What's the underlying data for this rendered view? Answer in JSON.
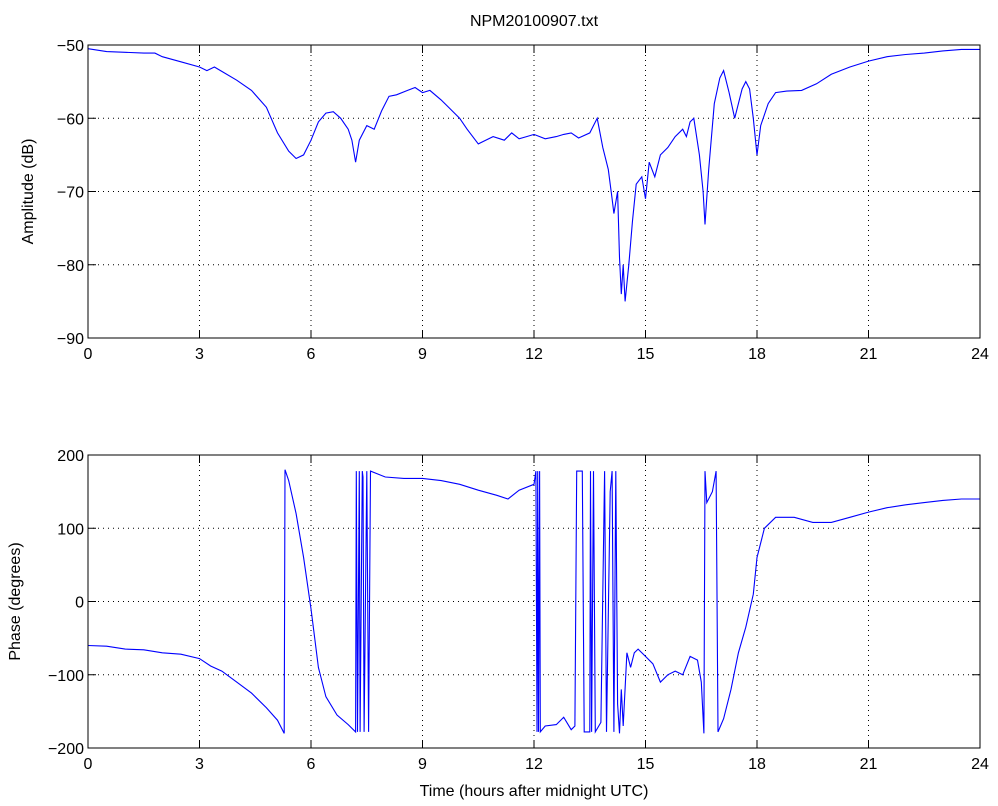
{
  "figure": {
    "title": "NPM20100907.txt",
    "xlabel": "Time (hours after midnight UTC)"
  },
  "colors": {
    "line": "#0000ff",
    "axes": "#000000",
    "grid": "#000000",
    "background": "#ffffff"
  },
  "chart_data": [
    {
      "type": "line",
      "title": "NPM20100907.txt",
      "xlabel": "",
      "ylabel": "Amplitude (dB)",
      "xlim": [
        0,
        24
      ],
      "ylim": [
        -90,
        -50
      ],
      "xticks": [
        0,
        3,
        6,
        9,
        12,
        15,
        18,
        21,
        24
      ],
      "yticks": [
        -90,
        -80,
        -70,
        -60,
        -50
      ],
      "xtick_labels": [
        "0",
        "3",
        "6",
        "9",
        "12",
        "15",
        "18",
        "21",
        "24"
      ],
      "ytick_labels": [
        "−90",
        "−80",
        "−70",
        "−60",
        "−50"
      ],
      "grid": true,
      "series": [
        {
          "points": [
            [
              0,
              -50.5
            ],
            [
              0.5,
              -50.9
            ],
            [
              1,
              -51
            ],
            [
              1.5,
              -51.1
            ],
            [
              1.8,
              -51.1
            ],
            [
              2,
              -51.6
            ],
            [
              2.5,
              -52.3
            ],
            [
              3,
              -53
            ],
            [
              3.2,
              -53.5
            ],
            [
              3.4,
              -53
            ],
            [
              3.6,
              -53.6
            ],
            [
              4,
              -54.8
            ],
            [
              4.4,
              -56.2
            ],
            [
              4.8,
              -58.5
            ],
            [
              5.1,
              -62
            ],
            [
              5.4,
              -64.5
            ],
            [
              5.6,
              -65.5
            ],
            [
              5.8,
              -65
            ],
            [
              6,
              -63
            ],
            [
              6.2,
              -60.5
            ],
            [
              6.4,
              -59.3
            ],
            [
              6.6,
              -59.1
            ],
            [
              6.8,
              -60
            ],
            [
              7,
              -61.5
            ],
            [
              7.1,
              -63
            ],
            [
              7.2,
              -66
            ],
            [
              7.3,
              -63
            ],
            [
              7.5,
              -61
            ],
            [
              7.7,
              -61.5
            ],
            [
              7.9,
              -59
            ],
            [
              8.1,
              -57
            ],
            [
              8.3,
              -56.8
            ],
            [
              8.6,
              -56.2
            ],
            [
              8.8,
              -55.8
            ],
            [
              9,
              -56.5
            ],
            [
              9.2,
              -56.2
            ],
            [
              9.5,
              -57.5
            ],
            [
              9.8,
              -59
            ],
            [
              10,
              -60
            ],
            [
              10.2,
              -61.5
            ],
            [
              10.5,
              -63.5
            ],
            [
              10.7,
              -63
            ],
            [
              10.9,
              -62.5
            ],
            [
              11.2,
              -63
            ],
            [
              11.4,
              -62
            ],
            [
              11.6,
              -62.8
            ],
            [
              11.8,
              -62.5
            ],
            [
              12,
              -62.2
            ],
            [
              12.3,
              -62.8
            ],
            [
              12.6,
              -62.5
            ],
            [
              12.8,
              -62.2
            ],
            [
              13,
              -62
            ],
            [
              13.2,
              -62.7
            ],
            [
              13.5,
              -62
            ],
            [
              13.7,
              -60
            ],
            [
              13.85,
              -64
            ],
            [
              14,
              -67
            ],
            [
              14.1,
              -71
            ],
            [
              14.15,
              -73
            ],
            [
              14.25,
              -70
            ],
            [
              14.3,
              -79
            ],
            [
              14.35,
              -84
            ],
            [
              14.4,
              -80
            ],
            [
              14.45,
              -85
            ],
            [
              14.55,
              -80
            ],
            [
              14.65,
              -74
            ],
            [
              14.75,
              -69
            ],
            [
              14.9,
              -68
            ],
            [
              15,
              -71
            ],
            [
              15.1,
              -66
            ],
            [
              15.25,
              -68
            ],
            [
              15.4,
              -65
            ],
            [
              15.6,
              -64
            ],
            [
              15.8,
              -62.5
            ],
            [
              16,
              -61.5
            ],
            [
              16.1,
              -62.5
            ],
            [
              16.2,
              -60.5
            ],
            [
              16.3,
              -60
            ],
            [
              16.45,
              -65
            ],
            [
              16.55,
              -70
            ],
            [
              16.6,
              -74.5
            ],
            [
              16.7,
              -67
            ],
            [
              16.85,
              -58
            ],
            [
              17,
              -54.5
            ],
            [
              17.1,
              -53.5
            ],
            [
              17.25,
              -56.5
            ],
            [
              17.4,
              -60
            ],
            [
              17.6,
              -56
            ],
            [
              17.7,
              -55
            ],
            [
              17.8,
              -56
            ],
            [
              17.9,
              -60
            ],
            [
              18,
              -65
            ],
            [
              18.1,
              -61
            ],
            [
              18.3,
              -58
            ],
            [
              18.5,
              -56.5
            ],
            [
              18.8,
              -56.3
            ],
            [
              19.2,
              -56.2
            ],
            [
              19.6,
              -55.3
            ],
            [
              20,
              -54
            ],
            [
              20.5,
              -53
            ],
            [
              21,
              -52.2
            ],
            [
              21.5,
              -51.6
            ],
            [
              22,
              -51.3
            ],
            [
              22.5,
              -51.1
            ],
            [
              23,
              -50.8
            ],
            [
              23.5,
              -50.6
            ],
            [
              24,
              -50.6
            ]
          ]
        }
      ]
    },
    {
      "type": "line",
      "title": "",
      "xlabel": "Time (hours after midnight UTC)",
      "ylabel": "Phase (degrees)",
      "xlim": [
        0,
        24
      ],
      "ylim": [
        -200,
        200
      ],
      "xticks": [
        0,
        3,
        6,
        9,
        12,
        15,
        18,
        21,
        24
      ],
      "yticks": [
        -200,
        -100,
        0,
        100,
        200
      ],
      "xtick_labels": [
        "0",
        "3",
        "6",
        "9",
        "12",
        "15",
        "18",
        "21",
        "24"
      ],
      "ytick_labels": [
        "−200",
        "−100",
        "0",
        "100",
        "200"
      ],
      "grid": true,
      "series": [
        {
          "points": [
            [
              0,
              -60
            ],
            [
              0.5,
              -61
            ],
            [
              1,
              -65
            ],
            [
              1.5,
              -66
            ],
            [
              2,
              -70
            ],
            [
              2.5,
              -72
            ],
            [
              3,
              -78
            ],
            [
              3.3,
              -88
            ],
            [
              3.6,
              -95
            ],
            [
              4,
              -110
            ],
            [
              4.4,
              -125
            ],
            [
              4.8,
              -145
            ],
            [
              5.1,
              -162
            ],
            [
              5.28,
              -180
            ],
            [
              5.3,
              180
            ],
            [
              5.4,
              165
            ],
            [
              5.6,
              120
            ],
            [
              5.8,
              60
            ],
            [
              6,
              -10
            ],
            [
              6.2,
              -90
            ],
            [
              6.4,
              -130
            ],
            [
              6.7,
              -155
            ],
            [
              7,
              -168
            ],
            [
              7.2,
              -178
            ],
            [
              7.22,
              178
            ],
            [
              7.25,
              -178
            ],
            [
              7.3,
              178
            ],
            [
              7.32,
              -178
            ],
            [
              7.38,
              178
            ],
            [
              7.4,
              170
            ],
            [
              7.43,
              -178
            ],
            [
              7.5,
              178
            ],
            [
              7.55,
              -178
            ],
            [
              7.6,
              178
            ],
            [
              8,
              170
            ],
            [
              8.5,
              168
            ],
            [
              9,
              168
            ],
            [
              9.5,
              165
            ],
            [
              10,
              160
            ],
            [
              10.5,
              152
            ],
            [
              11,
              145
            ],
            [
              11.3,
              140
            ],
            [
              11.6,
              152
            ],
            [
              12,
              160
            ],
            [
              12.05,
              178
            ],
            [
              12.08,
              -178
            ],
            [
              12.1,
              178
            ],
            [
              12.12,
              -178
            ],
            [
              12.15,
              178
            ],
            [
              12.17,
              -178
            ],
            [
              12.3,
              -170
            ],
            [
              12.6,
              -168
            ],
            [
              12.8,
              -158
            ],
            [
              13,
              -175
            ],
            [
              13.1,
              -170
            ],
            [
              13.15,
              178
            ],
            [
              13.3,
              178
            ],
            [
              13.35,
              -178
            ],
            [
              13.5,
              -178
            ],
            [
              13.52,
              178
            ],
            [
              13.55,
              -178
            ],
            [
              13.6,
              178
            ],
            [
              13.65,
              -178
            ],
            [
              13.8,
              -165
            ],
            [
              13.9,
              178
            ],
            [
              13.95,
              -178
            ],
            [
              14.05,
              150
            ],
            [
              14.1,
              178
            ],
            [
              14.15,
              -178
            ],
            [
              14.2,
              178
            ],
            [
              14.25,
              -140
            ],
            [
              14.3,
              -180
            ],
            [
              14.35,
              -120
            ],
            [
              14.4,
              -170
            ],
            [
              14.5,
              -70
            ],
            [
              14.6,
              -90
            ],
            [
              14.7,
              -70
            ],
            [
              14.8,
              -65
            ],
            [
              15,
              -75
            ],
            [
              15.2,
              -85
            ],
            [
              15.4,
              -110
            ],
            [
              15.6,
              -100
            ],
            [
              15.8,
              -95
            ],
            [
              16,
              -100
            ],
            [
              16.2,
              -75
            ],
            [
              16.4,
              -80
            ],
            [
              16.5,
              -110
            ],
            [
              16.57,
              -180
            ],
            [
              16.6,
              178
            ],
            [
              16.65,
              135
            ],
            [
              16.8,
              150
            ],
            [
              16.9,
              178
            ],
            [
              16.95,
              -178
            ],
            [
              17.1,
              -160
            ],
            [
              17.3,
              -120
            ],
            [
              17.5,
              -70
            ],
            [
              17.7,
              -35
            ],
            [
              17.9,
              10
            ],
            [
              18,
              60
            ],
            [
              18.2,
              100
            ],
            [
              18.5,
              115
            ],
            [
              19,
              115
            ],
            [
              19.5,
              108
            ],
            [
              20,
              108
            ],
            [
              20.5,
              115
            ],
            [
              21,
              122
            ],
            [
              21.5,
              128
            ],
            [
              22,
              132
            ],
            [
              22.5,
              135
            ],
            [
              23,
              138
            ],
            [
              23.5,
              140
            ],
            [
              24,
              140
            ]
          ]
        }
      ]
    }
  ]
}
